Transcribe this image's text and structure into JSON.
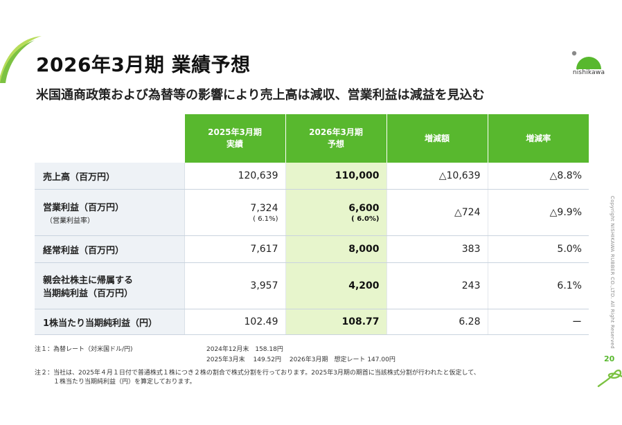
{
  "title": "2026年3月期 業績予想",
  "subtitle": "米国通商政策および為替等の影響により売上高は減収、営業利益は減益を見込む",
  "brand": {
    "logo_text": "nishikawa",
    "accent": "#58b82e"
  },
  "table": {
    "headers": {
      "actual_line1": "2025年3月期",
      "actual_line2": "実績",
      "forecast_line1": "2026年3月期",
      "forecast_line2": "予想",
      "diff": "増減額",
      "rate": "増減率"
    },
    "rows": [
      {
        "label": "売上高（百万円）",
        "sublabel": "",
        "actual": "120,639",
        "actual_pct": "",
        "forecast": "110,000",
        "forecast_pct": "",
        "diff": "△10,639",
        "rate": "△8.8%"
      },
      {
        "label": "営業利益（百万円）",
        "sublabel": "（営業利益率）",
        "actual": "7,324",
        "actual_pct": "( 6.1%)",
        "forecast": "6,600",
        "forecast_pct": "( 6.0%)",
        "diff": "△724",
        "rate": "△9.9%"
      },
      {
        "label": "経常利益（百万円）",
        "sublabel": "",
        "actual": "7,617",
        "actual_pct": "",
        "forecast": "8,000",
        "forecast_pct": "",
        "diff": "383",
        "rate": "5.0%"
      },
      {
        "label": "親会社株主に帰属する",
        "sublabel": "当期純利益（百万円）",
        "actual": "3,957",
        "actual_pct": "",
        "forecast": "4,200",
        "forecast_pct": "",
        "diff": "243",
        "rate": "6.1%"
      },
      {
        "label": "1株当たり当期純利益（円）",
        "sublabel": "",
        "actual": "102.49",
        "actual_pct": "",
        "forecast": "108.77",
        "forecast_pct": "",
        "diff": "6.28",
        "rate": "ー"
      }
    ]
  },
  "notes": {
    "note1_label": "注１：為替レート（対米国ドル/円)",
    "note1_line1": "2024年12月末　158.18円",
    "note1_line2": "2025年3月末　 149.52円　 2026年3月期　想定レート 147.00円",
    "note2_line1": "注２：当社は、2025年４月１日付で普通株式１株につき２株の割合で株式分割を行っております。2025年3月期の期首に当該株式分割が行われたと仮定して、",
    "note2_line2": "　　　１株当たり当期純利益（円）を算定しております。"
  },
  "page_number": "20",
  "copyright": "Copyright NISHIKAWA RUBBER CO.,LTD. All Right Reserved"
}
